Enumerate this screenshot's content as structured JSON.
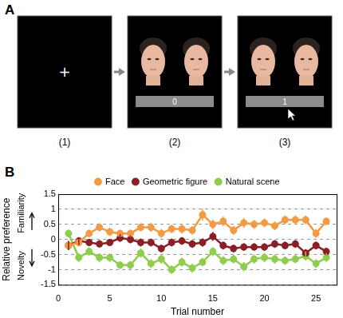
{
  "panel_labels": [
    "A",
    "B"
  ],
  "panel_a": {
    "screens": [
      {
        "label": "(1)",
        "fixation": "+"
      },
      {
        "label": "(2)",
        "counter": 0
      },
      {
        "label": "(3)",
        "counter": 1
      }
    ]
  },
  "chart_data": {
    "type": "line",
    "x_label": "Trial number",
    "y_label": "Relative preference",
    "annotations": [
      "Familiarity",
      "Novelty"
    ],
    "x": [
      1,
      2,
      3,
      4,
      5,
      6,
      7,
      8,
      9,
      10,
      11,
      12,
      13,
      14,
      15,
      16,
      17,
      18,
      19,
      20,
      21,
      22,
      23,
      24,
      25,
      26
    ],
    "xlim": [
      0,
      27
    ],
    "xticks": [
      0,
      5,
      10,
      15,
      20,
      25
    ],
    "ylim": [
      -1.5,
      1.5
    ],
    "yticks": [
      -1.5,
      -1,
      -0.5,
      0,
      0.5,
      1,
      1.5
    ],
    "grid": true,
    "legend": "top",
    "marker": "circle",
    "series": [
      {
        "name": "Face",
        "color": "#f39a45",
        "values": [
          -0.2,
          -0.1,
          0.2,
          0.4,
          0.25,
          0.2,
          0.2,
          0.4,
          0.4,
          0.2,
          0.35,
          0.35,
          0.3,
          0.82,
          0.5,
          0.6,
          0.3,
          0.55,
          0.5,
          0.55,
          0.45,
          0.65,
          0.65,
          0.65,
          0.2,
          0.6
        ],
        "errors": [
          0.15,
          0.14,
          0.13,
          0.14,
          0.14,
          0.13,
          0.13,
          0.14,
          0.15,
          0.15,
          0.14,
          0.15,
          0.14,
          0.2,
          0.16,
          0.16,
          0.15,
          0.16,
          0.15,
          0.15,
          0.15,
          0.15,
          0.15,
          0.14,
          0.15,
          0.12
        ]
      },
      {
        "name": "Geometric figure",
        "color": "#8b1f26",
        "values": [
          -0.2,
          -0.05,
          -0.1,
          -0.15,
          -0.1,
          0.05,
          0,
          -0.1,
          -0.1,
          -0.3,
          -0.1,
          -0.05,
          -0.15,
          -0.1,
          0.1,
          -0.2,
          -0.3,
          -0.25,
          -0.25,
          -0.25,
          -0.15,
          -0.2,
          -0.15,
          -0.45,
          -0.2,
          -0.4
        ],
        "errors": [
          0.15,
          0.13,
          0.12,
          0.12,
          0.12,
          0.13,
          0.13,
          0.13,
          0.13,
          0.13,
          0.13,
          0.13,
          0.13,
          0.14,
          0.15,
          0.13,
          0.13,
          0.13,
          0.13,
          0.13,
          0.13,
          0.13,
          0.13,
          0.13,
          0.13,
          0.13
        ]
      },
      {
        "name": "Natural scene",
        "color": "#8fce4d",
        "values": [
          0.2,
          -0.6,
          -0.4,
          -0.6,
          -0.6,
          -0.85,
          -0.85,
          -0.45,
          -0.8,
          -0.65,
          -1.0,
          -0.75,
          -0.95,
          -0.75,
          -0.4,
          -0.7,
          -0.65,
          -0.9,
          -0.65,
          -0.6,
          -0.65,
          -0.7,
          -0.65,
          -0.55,
          -0.8,
          -0.6
        ],
        "errors": [
          0.13,
          0.14,
          0.14,
          0.15,
          0.14,
          0.13,
          0.14,
          0.15,
          0.15,
          0.15,
          0.14,
          0.15,
          0.15,
          0.14,
          0.15,
          0.15,
          0.14,
          0.15,
          0.15,
          0.15,
          0.15,
          0.14,
          0.14,
          0.15,
          0.15,
          0.14
        ]
      }
    ]
  }
}
